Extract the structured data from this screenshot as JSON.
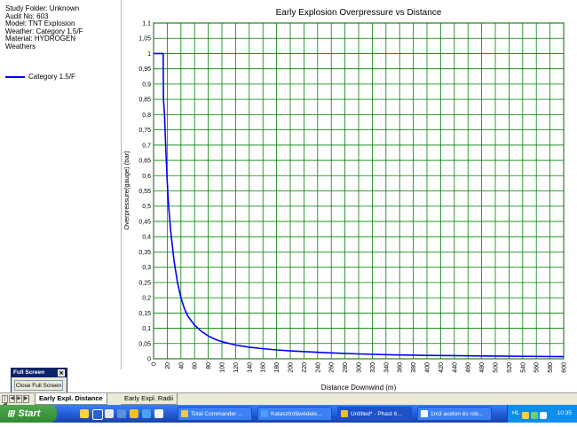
{
  "info": {
    "lines": [
      "Study Folder: Unknown",
      "Audit No: 603",
      "Model: TNT Explosion",
      "Weather: Category 1.5/F",
      "Material: HYDROGEN",
      "Weathers"
    ]
  },
  "legend": {
    "entry": "Category 1.5/F",
    "color": "#0000ff"
  },
  "fullscreen": {
    "title": "Full Screen",
    "close_icon": "close-icon",
    "button": "Close Full Screen"
  },
  "tabs": {
    "nav": [
      "|◀",
      "◀",
      "▶",
      "▶|"
    ],
    "active": "Early Expl. Distance",
    "inactive": "Early Expl. Radii"
  },
  "taskbar": {
    "start": "Start",
    "tasks": [
      "Total Commander ...",
      "Katasztrófavédele...",
      "Untitled* - Phast 6...",
      "1m3 aceton és rob..."
    ],
    "lang": "HL",
    "clock": "10:35"
  },
  "chart_data": {
    "type": "line",
    "title": "Early Explosion Overpressure vs Distance",
    "xlabel": "Distance Downwind (m)",
    "ylabel": "Overpressure(gauge) (bar)",
    "xlim": [
      0,
      600
    ],
    "ylim": [
      0,
      1.1
    ],
    "xticks": [
      "0",
      "20",
      "40",
      "60",
      "80",
      "100",
      "120",
      "140",
      "160",
      "180",
      "200",
      "220",
      "240",
      "260",
      "280",
      "300",
      "320",
      "340",
      "360",
      "380",
      "400",
      "420",
      "440",
      "460",
      "480",
      "500",
      "520",
      "540",
      "560",
      "580",
      "600"
    ],
    "yticks": [
      "0",
      "0,05",
      "0,1",
      "0,15",
      "0,2",
      "0,25",
      "0,3",
      "0,35",
      "0,4",
      "0,45",
      "0,5",
      "0,55",
      "0,6",
      "0,65",
      "0,7",
      "0,75",
      "0,8",
      "0,85",
      "0,9",
      "0,95",
      "1",
      "1,05",
      "1,1"
    ],
    "grid": true,
    "grid_color": "#008000",
    "line_color": "#0000ff",
    "series": [
      {
        "name": "Category 1.5/F",
        "x": [
          0,
          14,
          14.5,
          16,
          18,
          20,
          22,
          25,
          30,
          35,
          40,
          45,
          50,
          60,
          70,
          80,
          90,
          100,
          120,
          140,
          160,
          180,
          200,
          250,
          300,
          350,
          400,
          450,
          500,
          550,
          600
        ],
        "y": [
          1.0,
          1.0,
          0.85,
          0.8,
          0.68,
          0.58,
          0.5,
          0.42,
          0.32,
          0.25,
          0.2,
          0.165,
          0.14,
          0.11,
          0.09,
          0.075,
          0.064,
          0.056,
          0.045,
          0.038,
          0.033,
          0.029,
          0.026,
          0.02,
          0.016,
          0.013,
          0.011,
          0.01,
          0.009,
          0.008,
          0.007
        ]
      }
    ]
  }
}
